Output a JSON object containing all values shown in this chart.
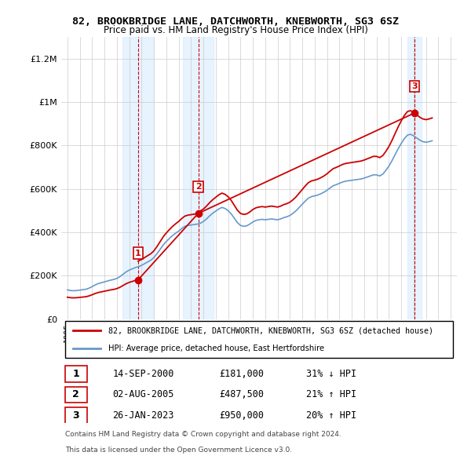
{
  "title": "82, BROOKBRIDGE LANE, DATCHWORTH, KNEBWORTH, SG3 6SZ",
  "subtitle": "Price paid vs. HM Land Registry's House Price Index (HPI)",
  "legend_line1": "82, BROOKBRIDGE LANE, DATCHWORTH, KNEBWORTH, SG3 6SZ (detached house)",
  "legend_line2": "HPI: Average price, detached house, East Hertfordshire",
  "footer1": "Contains HM Land Registry data © Crown copyright and database right 2024.",
  "footer2": "This data is licensed under the Open Government Licence v3.0.",
  "sale_color": "#cc0000",
  "hpi_color": "#6699cc",
  "vline_color": "#cc0000",
  "vshade_color": "#ddeeff",
  "ylim": [
    0,
    1300000
  ],
  "yticks": [
    0,
    200000,
    400000,
    600000,
    800000,
    1000000,
    1200000
  ],
  "ytick_labels": [
    "£0",
    "£200K",
    "£400K",
    "£600K",
    "£800K",
    "£1M",
    "£1.2M"
  ],
  "sales": [
    {
      "date_num": 2000.71,
      "price": 181000,
      "label": "1"
    },
    {
      "date_num": 2005.58,
      "price": 487500,
      "label": "2"
    },
    {
      "date_num": 2023.07,
      "price": 950000,
      "label": "3"
    }
  ],
  "table_rows": [
    {
      "num": "1",
      "date": "14-SEP-2000",
      "price": "£181,000",
      "hpi": "31% ↓ HPI"
    },
    {
      "num": "2",
      "date": "02-AUG-2005",
      "price": "£487,500",
      "hpi": "21% ↑ HPI"
    },
    {
      "num": "3",
      "date": "26-JAN-2023",
      "price": "£950,000",
      "hpi": "20% ↑ HPI"
    }
  ],
  "hpi_data": {
    "years": [
      1995.0,
      1995.25,
      1995.5,
      1995.75,
      1996.0,
      1996.25,
      1996.5,
      1996.75,
      1997.0,
      1997.25,
      1997.5,
      1997.75,
      1998.0,
      1998.25,
      1998.5,
      1998.75,
      1999.0,
      1999.25,
      1999.5,
      1999.75,
      2000.0,
      2000.25,
      2000.5,
      2000.75,
      2001.0,
      2001.25,
      2001.5,
      2001.75,
      2002.0,
      2002.25,
      2002.5,
      2002.75,
      2003.0,
      2003.25,
      2003.5,
      2003.75,
      2004.0,
      2004.25,
      2004.5,
      2004.75,
      2005.0,
      2005.25,
      2005.5,
      2005.75,
      2006.0,
      2006.25,
      2006.5,
      2006.75,
      2007.0,
      2007.25,
      2007.5,
      2007.75,
      2008.0,
      2008.25,
      2008.5,
      2008.75,
      2009.0,
      2009.25,
      2009.5,
      2009.75,
      2010.0,
      2010.25,
      2010.5,
      2010.75,
      2011.0,
      2011.25,
      2011.5,
      2011.75,
      2012.0,
      2012.25,
      2012.5,
      2012.75,
      2013.0,
      2013.25,
      2013.5,
      2013.75,
      2014.0,
      2014.25,
      2014.5,
      2014.75,
      2015.0,
      2015.25,
      2015.5,
      2015.75,
      2016.0,
      2016.25,
      2016.5,
      2016.75,
      2017.0,
      2017.25,
      2017.5,
      2017.75,
      2018.0,
      2018.25,
      2018.5,
      2018.75,
      2019.0,
      2019.25,
      2019.5,
      2019.75,
      2020.0,
      2020.25,
      2020.5,
      2020.75,
      2021.0,
      2021.25,
      2021.5,
      2021.75,
      2022.0,
      2022.25,
      2022.5,
      2022.75,
      2023.0,
      2023.25,
      2023.5,
      2023.75,
      2024.0,
      2024.25,
      2024.5
    ],
    "values": [
      135000,
      132000,
      131000,
      132000,
      134000,
      136000,
      138000,
      143000,
      150000,
      158000,
      164000,
      168000,
      172000,
      176000,
      180000,
      183000,
      188000,
      196000,
      207000,
      218000,
      226000,
      232000,
      238000,
      242000,
      248000,
      256000,
      264000,
      272000,
      284000,
      302000,
      322000,
      342000,
      358000,
      372000,
      385000,
      396000,
      406000,
      418000,
      428000,
      432000,
      434000,
      436000,
      438000,
      442000,
      450000,
      462000,
      476000,
      488000,
      498000,
      508000,
      515000,
      510000,
      500000,
      485000,
      465000,
      445000,
      432000,
      428000,
      430000,
      438000,
      448000,
      455000,
      458000,
      460000,
      458000,
      460000,
      462000,
      460000,
      458000,
      462000,
      468000,
      472000,
      478000,
      488000,
      500000,
      515000,
      530000,
      545000,
      558000,
      565000,
      568000,
      572000,
      578000,
      585000,
      594000,
      605000,
      615000,
      620000,
      626000,
      632000,
      636000,
      638000,
      640000,
      642000,
      644000,
      646000,
      650000,
      655000,
      660000,
      665000,
      665000,
      660000,
      668000,
      685000,
      705000,
      730000,
      758000,
      785000,
      810000,
      832000,
      848000,
      852000,
      845000,
      835000,
      825000,
      818000,
      815000,
      818000,
      822000
    ]
  },
  "sale_hpi_data": {
    "years": [
      2000.71,
      2005.58,
      2023.07
    ],
    "values": [
      181000,
      487500,
      950000
    ]
  }
}
